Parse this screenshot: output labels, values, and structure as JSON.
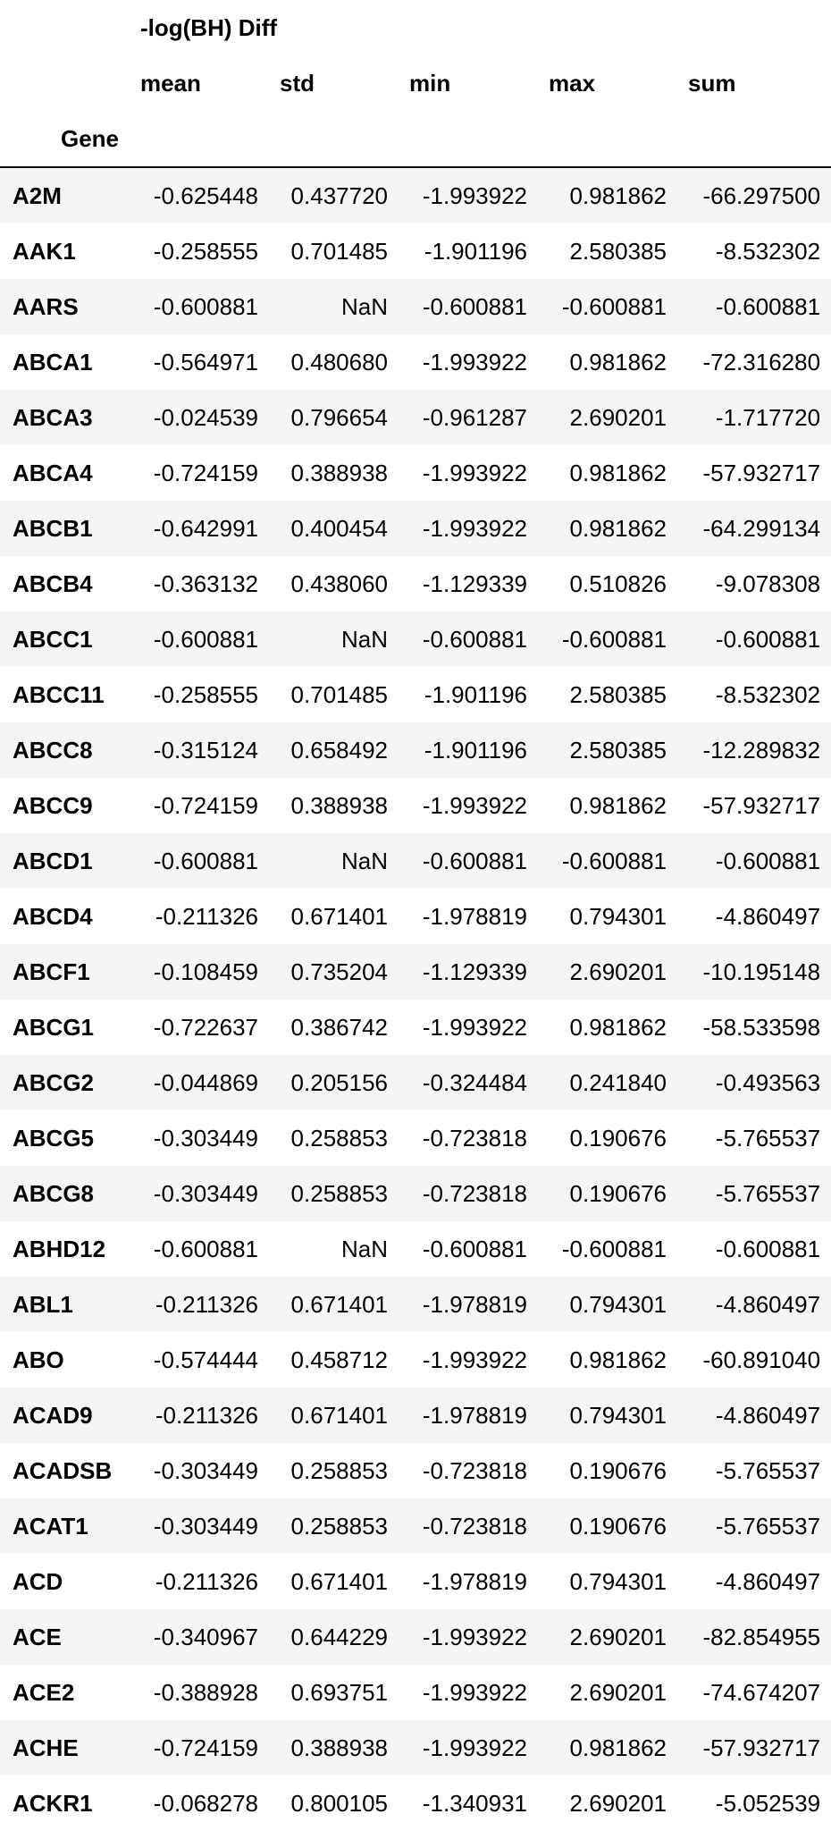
{
  "table": {
    "group_header": "-log(BH) Diff",
    "columns": [
      "mean",
      "std",
      "min",
      "max",
      "sum"
    ],
    "index_name": "Gene",
    "rows": [
      {
        "gene": "A2M",
        "values": [
          "-0.625448",
          "0.437720",
          "-1.993922",
          "0.981862",
          "-66.297500"
        ]
      },
      {
        "gene": "AAK1",
        "values": [
          "-0.258555",
          "0.701485",
          "-1.901196",
          "2.580385",
          "-8.532302"
        ]
      },
      {
        "gene": "AARS",
        "values": [
          "-0.600881",
          "NaN",
          "-0.600881",
          "-0.600881",
          "-0.600881"
        ]
      },
      {
        "gene": "ABCA1",
        "values": [
          "-0.564971",
          "0.480680",
          "-1.993922",
          "0.981862",
          "-72.316280"
        ]
      },
      {
        "gene": "ABCA3",
        "values": [
          "-0.024539",
          "0.796654",
          "-0.961287",
          "2.690201",
          "-1.717720"
        ]
      },
      {
        "gene": "ABCA4",
        "values": [
          "-0.724159",
          "0.388938",
          "-1.993922",
          "0.981862",
          "-57.932717"
        ]
      },
      {
        "gene": "ABCB1",
        "values": [
          "-0.642991",
          "0.400454",
          "-1.993922",
          "0.981862",
          "-64.299134"
        ]
      },
      {
        "gene": "ABCB4",
        "values": [
          "-0.363132",
          "0.438060",
          "-1.129339",
          "0.510826",
          "-9.078308"
        ]
      },
      {
        "gene": "ABCC1",
        "values": [
          "-0.600881",
          "NaN",
          "-0.600881",
          "-0.600881",
          "-0.600881"
        ]
      },
      {
        "gene": "ABCC11",
        "values": [
          "-0.258555",
          "0.701485",
          "-1.901196",
          "2.580385",
          "-8.532302"
        ]
      },
      {
        "gene": "ABCC8",
        "values": [
          "-0.315124",
          "0.658492",
          "-1.901196",
          "2.580385",
          "-12.289832"
        ]
      },
      {
        "gene": "ABCC9",
        "values": [
          "-0.724159",
          "0.388938",
          "-1.993922",
          "0.981862",
          "-57.932717"
        ]
      },
      {
        "gene": "ABCD1",
        "values": [
          "-0.600881",
          "NaN",
          "-0.600881",
          "-0.600881",
          "-0.600881"
        ]
      },
      {
        "gene": "ABCD4",
        "values": [
          "-0.211326",
          "0.671401",
          "-1.978819",
          "0.794301",
          "-4.860497"
        ]
      },
      {
        "gene": "ABCF1",
        "values": [
          "-0.108459",
          "0.735204",
          "-1.129339",
          "2.690201",
          "-10.195148"
        ]
      },
      {
        "gene": "ABCG1",
        "values": [
          "-0.722637",
          "0.386742",
          "-1.993922",
          "0.981862",
          "-58.533598"
        ]
      },
      {
        "gene": "ABCG2",
        "values": [
          "-0.044869",
          "0.205156",
          "-0.324484",
          "0.241840",
          "-0.493563"
        ]
      },
      {
        "gene": "ABCG5",
        "values": [
          "-0.303449",
          "0.258853",
          "-0.723818",
          "0.190676",
          "-5.765537"
        ]
      },
      {
        "gene": "ABCG8",
        "values": [
          "-0.303449",
          "0.258853",
          "-0.723818",
          "0.190676",
          "-5.765537"
        ]
      },
      {
        "gene": "ABHD12",
        "values": [
          "-0.600881",
          "NaN",
          "-0.600881",
          "-0.600881",
          "-0.600881"
        ]
      },
      {
        "gene": "ABL1",
        "values": [
          "-0.211326",
          "0.671401",
          "-1.978819",
          "0.794301",
          "-4.860497"
        ]
      },
      {
        "gene": "ABO",
        "values": [
          "-0.574444",
          "0.458712",
          "-1.993922",
          "0.981862",
          "-60.891040"
        ]
      },
      {
        "gene": "ACAD9",
        "values": [
          "-0.211326",
          "0.671401",
          "-1.978819",
          "0.794301",
          "-4.860497"
        ]
      },
      {
        "gene": "ACADSB",
        "values": [
          "-0.303449",
          "0.258853",
          "-0.723818",
          "0.190676",
          "-5.765537"
        ]
      },
      {
        "gene": "ACAT1",
        "values": [
          "-0.303449",
          "0.258853",
          "-0.723818",
          "0.190676",
          "-5.765537"
        ]
      },
      {
        "gene": "ACD",
        "values": [
          "-0.211326",
          "0.671401",
          "-1.978819",
          "0.794301",
          "-4.860497"
        ]
      },
      {
        "gene": "ACE",
        "values": [
          "-0.340967",
          "0.644229",
          "-1.993922",
          "2.690201",
          "-82.854955"
        ]
      },
      {
        "gene": "ACE2",
        "values": [
          "-0.388928",
          "0.693751",
          "-1.993922",
          "2.690201",
          "-74.674207"
        ]
      },
      {
        "gene": "ACHE",
        "values": [
          "-0.724159",
          "0.388938",
          "-1.993922",
          "0.981862",
          "-57.932717"
        ]
      },
      {
        "gene": "ACKR1",
        "values": [
          "-0.068278",
          "0.800105",
          "-1.340931",
          "2.690201",
          "-5.052539"
        ]
      }
    ]
  }
}
